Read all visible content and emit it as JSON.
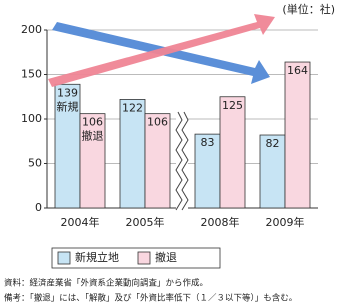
{
  "chart_data": {
    "type": "bar",
    "unit_label": "(単位：社)",
    "categories": [
      "2004年",
      "2005年",
      "2008年",
      "2009年"
    ],
    "series": [
      {
        "name": "新規立地",
        "color": "#c7e4f4",
        "values": [
          139,
          122,
          83,
          82
        ]
      },
      {
        "name": "撤退",
        "color": "#f9d7e0",
        "values": [
          106,
          106,
          125,
          164
        ]
      }
    ],
    "annotations": [
      "新規",
      "撤退"
    ],
    "ylim": [
      0,
      200
    ],
    "yticks": [
      0,
      50,
      100,
      150,
      200
    ],
    "grid": true,
    "notes": [
      "資料：経済産業省「外資系企業動向調査」から作成。",
      "備考：「撤退」には、「解散」及び「外資比率低下（１／３以下等）」も含む。"
    ]
  }
}
